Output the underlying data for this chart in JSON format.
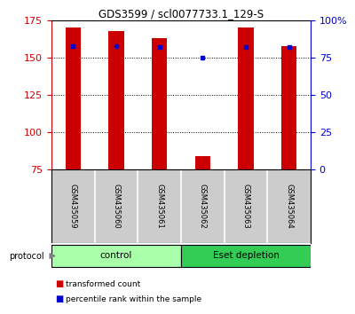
{
  "title": "GDS3599 / scl0077733.1_129-S",
  "samples": [
    "GSM435059",
    "GSM435060",
    "GSM435061",
    "GSM435062",
    "GSM435063",
    "GSM435064"
  ],
  "red_values": [
    170,
    168,
    163,
    84,
    170,
    158
  ],
  "blue_values": [
    158,
    158,
    157,
    150,
    157,
    157
  ],
  "y_min": 75,
  "y_max": 175,
  "y_ticks": [
    75,
    100,
    125,
    150,
    175
  ],
  "right_y_ticks": [
    0,
    25,
    50,
    75,
    100
  ],
  "right_y_labels": [
    "0",
    "25",
    "50",
    "75",
    "100%"
  ],
  "groups": [
    {
      "label": "control",
      "start": 0,
      "end": 3,
      "color": "#AAFFAA"
    },
    {
      "label": "Eset depletion",
      "start": 3,
      "end": 6,
      "color": "#33CC55"
    }
  ],
  "protocol_label": "protocol",
  "legend_red": "transformed count",
  "legend_blue": "percentile rank within the sample",
  "bar_color": "#CC0000",
  "dot_color": "#0000CC",
  "bg_color": "#FFFFFF",
  "grid_color": "#000000",
  "tick_color_left": "#CC0000",
  "tick_color_right": "#0000CC",
  "bar_width": 0.35
}
